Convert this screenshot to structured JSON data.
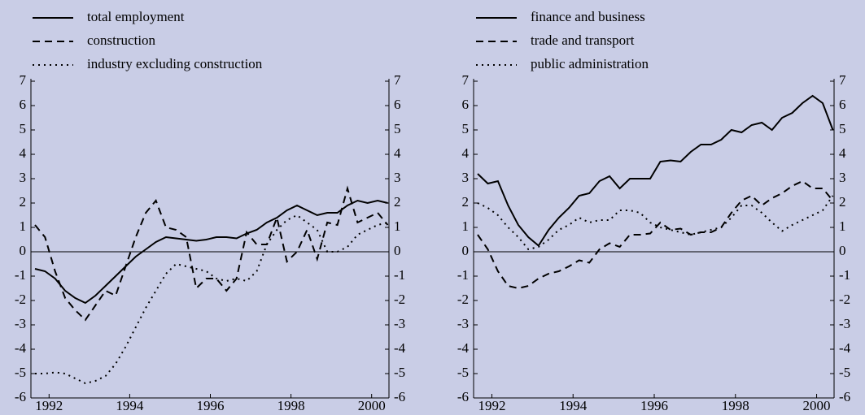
{
  "chart_data": [
    {
      "type": "line",
      "x": [
        1991.65,
        1991.9,
        1992.15,
        1992.4,
        1992.65,
        1992.9,
        1993.15,
        1993.4,
        1993.65,
        1993.9,
        1994.15,
        1994.4,
        1994.65,
        1994.9,
        1995.15,
        1995.4,
        1995.65,
        1995.9,
        1996.15,
        1996.4,
        1996.65,
        1996.9,
        1997.15,
        1997.4,
        1997.65,
        1997.9,
        1998.15,
        1998.4,
        1998.65,
        1998.9,
        1999.15,
        1999.4,
        1999.65,
        1999.9,
        2000.15,
        2000.4
      ],
      "xlim": [
        1991.55,
        2000.43
      ],
      "xticks": [
        1992,
        1994,
        1996,
        1998,
        2000
      ],
      "ylim": [
        -6,
        7
      ],
      "yticks": [
        -6,
        -5,
        -4,
        -3,
        -2,
        -1,
        0,
        1,
        2,
        3,
        4,
        5,
        6,
        7
      ],
      "series": [
        {
          "name": "total employment",
          "color": "#000000",
          "dash": "solid",
          "values": [
            -0.7,
            -0.8,
            -1.1,
            -1.6,
            -1.9,
            -2.1,
            -1.8,
            -1.4,
            -1.0,
            -0.6,
            -0.2,
            0.1,
            0.4,
            0.6,
            0.55,
            0.5,
            0.45,
            0.5,
            0.6,
            0.6,
            0.55,
            0.75,
            0.9,
            1.2,
            1.4,
            1.7,
            1.9,
            1.7,
            1.5,
            1.6,
            1.6,
            1.9,
            2.1,
            2.0,
            2.1,
            2.0
          ]
        },
        {
          "name": "construction",
          "color": "#000000",
          "dash": "dashed",
          "values": [
            1.1,
            0.6,
            -0.8,
            -1.9,
            -2.4,
            -2.8,
            -2.2,
            -1.6,
            -1.8,
            -0.6,
            0.6,
            1.6,
            2.1,
            1.0,
            0.9,
            0.6,
            -1.5,
            -1.1,
            -1.1,
            -1.6,
            -1.1,
            0.8,
            0.3,
            0.3,
            1.4,
            -0.4,
            0.0,
            0.9,
            -0.3,
            1.2,
            1.1,
            2.6,
            1.2,
            1.4,
            1.6,
            1.1
          ]
        },
        {
          "name": "industry excluding construction",
          "color": "#000000",
          "dash": "dotted",
          "values": [
            -5.0,
            -5.0,
            -4.95,
            -5.0,
            -5.2,
            -5.4,
            -5.3,
            -5.1,
            -4.6,
            -3.9,
            -3.1,
            -2.3,
            -1.6,
            -0.9,
            -0.5,
            -0.6,
            -0.7,
            -0.8,
            -1.1,
            -1.2,
            -1.1,
            -1.2,
            -0.8,
            0.3,
            0.9,
            1.3,
            1.5,
            1.2,
            0.9,
            0.0,
            0.0,
            0.2,
            0.7,
            0.9,
            1.1,
            1.2
          ]
        }
      ]
    },
    {
      "type": "line",
      "x": [
        1991.65,
        1991.9,
        1992.15,
        1992.4,
        1992.65,
        1992.9,
        1993.15,
        1993.4,
        1993.65,
        1993.9,
        1994.15,
        1994.4,
        1994.65,
        1994.9,
        1995.15,
        1995.4,
        1995.65,
        1995.9,
        1996.15,
        1996.4,
        1996.65,
        1996.9,
        1997.15,
        1997.4,
        1997.65,
        1997.9,
        1998.15,
        1998.4,
        1998.65,
        1998.9,
        1999.15,
        1999.4,
        1999.65,
        1999.9,
        2000.15,
        2000.4
      ],
      "xlim": [
        1991.55,
        2000.43
      ],
      "xticks": [
        1992,
        1994,
        1996,
        1998,
        2000
      ],
      "ylim": [
        -6,
        7
      ],
      "yticks": [
        -6,
        -5,
        -4,
        -3,
        -2,
        -1,
        0,
        1,
        2,
        3,
        4,
        5,
        6,
        7
      ],
      "series": [
        {
          "name": "finance and business",
          "color": "#000000",
          "dash": "solid",
          "values": [
            3.2,
            2.8,
            2.9,
            1.9,
            1.1,
            0.6,
            0.25,
            0.9,
            1.4,
            1.8,
            2.3,
            2.4,
            2.9,
            3.1,
            2.6,
            3.0,
            3.0,
            3.0,
            3.7,
            3.75,
            3.7,
            4.1,
            4.4,
            4.4,
            4.6,
            5.0,
            4.9,
            5.2,
            5.3,
            5.0,
            5.5,
            5.7,
            6.1,
            6.4,
            6.1,
            5.0
          ]
        },
        {
          "name": "trade and transport",
          "color": "#000000",
          "dash": "dashed",
          "values": [
            0.7,
            0.1,
            -0.8,
            -1.4,
            -1.5,
            -1.4,
            -1.1,
            -0.9,
            -0.8,
            -0.6,
            -0.35,
            -0.45,
            0.1,
            0.35,
            0.2,
            0.7,
            0.7,
            0.75,
            1.2,
            0.9,
            0.95,
            0.7,
            0.8,
            0.8,
            1.0,
            1.6,
            2.1,
            2.3,
            1.9,
            2.2,
            2.4,
            2.7,
            2.9,
            2.6,
            2.6,
            2.1
          ]
        },
        {
          "name": "public administration",
          "color": "#000000",
          "dash": "dotted",
          "values": [
            2.0,
            1.8,
            1.5,
            1.0,
            0.6,
            0.1,
            0.2,
            0.5,
            0.9,
            1.1,
            1.4,
            1.2,
            1.3,
            1.3,
            1.7,
            1.7,
            1.6,
            1.2,
            1.0,
            0.9,
            0.8,
            0.7,
            0.8,
            0.9,
            1.0,
            1.4,
            1.9,
            1.9,
            1.6,
            1.2,
            0.85,
            1.1,
            1.3,
            1.5,
            1.7,
            2.3
          ]
        }
      ]
    }
  ]
}
